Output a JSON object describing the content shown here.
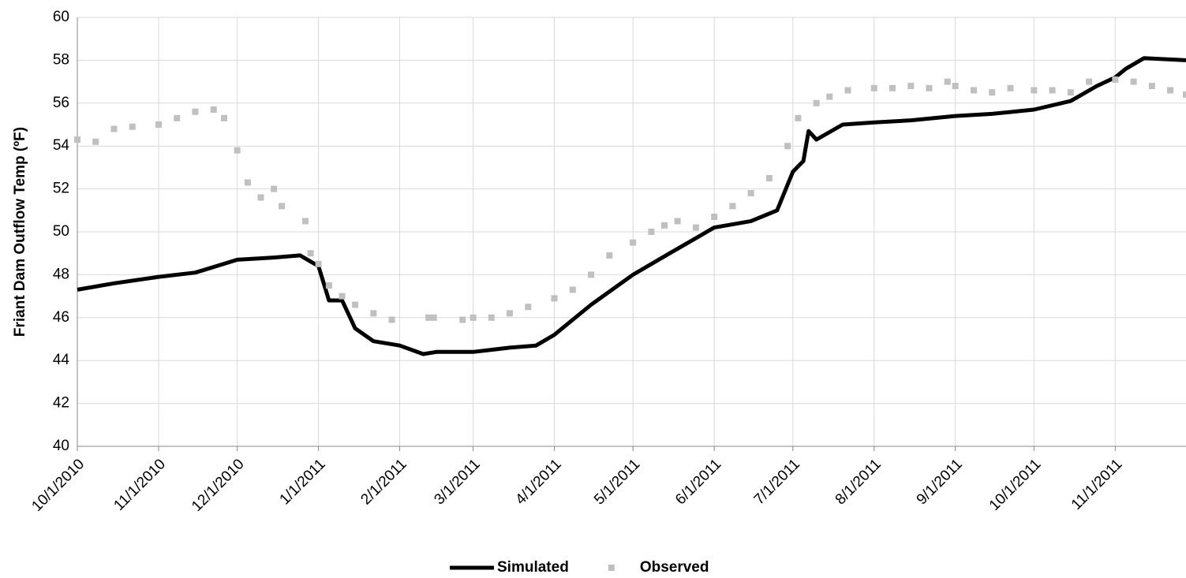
{
  "chart_data": {
    "type": "line",
    "y_label": "Friant Dam Outflow Temp (ºF)",
    "xlim": [
      "2010-10-01",
      "2011-11-28"
    ],
    "xticks": [
      {
        "value": "2010-10-01",
        "label": "10/1/2010"
      },
      {
        "value": "2010-11-01",
        "label": "11/1/2010"
      },
      {
        "value": "2010-12-01",
        "label": "12/1/2010"
      },
      {
        "value": "2011-01-01",
        "label": "1/1/2011"
      },
      {
        "value": "2011-02-01",
        "label": "2/1/2011"
      },
      {
        "value": "2011-03-01",
        "label": "3/1/2011"
      },
      {
        "value": "2011-04-01",
        "label": "4/1/2011"
      },
      {
        "value": "2011-05-01",
        "label": "5/1/2011"
      },
      {
        "value": "2011-06-01",
        "label": "6/1/2011"
      },
      {
        "value": "2011-07-01",
        "label": "7/1/2011"
      },
      {
        "value": "2011-08-01",
        "label": "8/1/2011"
      },
      {
        "value": "2011-09-01",
        "label": "9/1/2011"
      },
      {
        "value": "2011-10-01",
        "label": "10/1/2011"
      },
      {
        "value": "2011-11-01",
        "label": "11/1/2011"
      }
    ],
    "ylim": [
      40,
      60
    ],
    "yticks": [
      40,
      42,
      44,
      46,
      48,
      50,
      52,
      54,
      56,
      58,
      60
    ],
    "grid": true,
    "legend": "bottom",
    "series": [
      {
        "name": "Simulated",
        "color": "#000000",
        "mode": "line",
        "x": [
          "2010-10-01",
          "2010-10-15",
          "2010-11-01",
          "2010-11-15",
          "2010-12-01",
          "2010-12-15",
          "2010-12-25",
          "2011-01-01",
          "2011-01-05",
          "2011-01-10",
          "2011-01-15",
          "2011-01-22",
          "2011-02-01",
          "2011-02-10",
          "2011-02-15",
          "2011-03-01",
          "2011-03-15",
          "2011-03-25",
          "2011-04-01",
          "2011-04-15",
          "2011-05-01",
          "2011-05-15",
          "2011-06-01",
          "2011-06-15",
          "2011-06-25",
          "2011-07-01",
          "2011-07-05",
          "2011-07-07",
          "2011-07-10",
          "2011-07-20",
          "2011-08-01",
          "2011-08-15",
          "2011-09-01",
          "2011-09-15",
          "2011-10-01",
          "2011-10-15",
          "2011-10-25",
          "2011-11-01",
          "2011-11-05",
          "2011-11-12",
          "2011-11-28"
        ],
        "values": [
          47.3,
          47.6,
          47.9,
          48.1,
          48.7,
          48.8,
          48.9,
          48.4,
          46.8,
          46.8,
          45.5,
          44.9,
          44.7,
          44.3,
          44.4,
          44.4,
          44.6,
          44.7,
          45.2,
          46.6,
          48.0,
          49.0,
          50.2,
          50.5,
          51.0,
          52.8,
          53.3,
          54.7,
          54.3,
          55.0,
          55.1,
          55.2,
          55.4,
          55.5,
          55.7,
          56.1,
          56.8,
          57.2,
          57.6,
          58.1,
          58.0
        ]
      },
      {
        "name": "Observed",
        "color": "#c0c0c0",
        "mode": "markers",
        "x": [
          "2010-10-01",
          "2010-10-08",
          "2010-10-15",
          "2010-10-22",
          "2010-11-01",
          "2010-11-08",
          "2010-11-15",
          "2010-11-22",
          "2010-11-26",
          "2010-12-01",
          "2010-12-05",
          "2010-12-10",
          "2010-12-15",
          "2010-12-18",
          "2010-12-27",
          "2010-12-29",
          "2011-01-01",
          "2011-01-05",
          "2011-01-10",
          "2011-01-15",
          "2011-01-22",
          "2011-01-29",
          "2011-02-12",
          "2011-02-14",
          "2011-02-25",
          "2011-03-01",
          "2011-03-08",
          "2011-03-15",
          "2011-03-22",
          "2011-04-01",
          "2011-04-08",
          "2011-04-15",
          "2011-04-22",
          "2011-05-01",
          "2011-05-08",
          "2011-05-13",
          "2011-05-18",
          "2011-05-25",
          "2011-06-01",
          "2011-06-08",
          "2011-06-15",
          "2011-06-22",
          "2011-06-29",
          "2011-07-03",
          "2011-07-10",
          "2011-07-15",
          "2011-07-22",
          "2011-08-01",
          "2011-08-08",
          "2011-08-15",
          "2011-08-22",
          "2011-08-29",
          "2011-09-01",
          "2011-09-08",
          "2011-09-15",
          "2011-09-22",
          "2011-10-01",
          "2011-10-08",
          "2011-10-15",
          "2011-10-22",
          "2011-11-01",
          "2011-11-08",
          "2011-11-15",
          "2011-11-22",
          "2011-11-28"
        ],
        "values": [
          54.3,
          54.2,
          54.8,
          54.9,
          55.0,
          55.3,
          55.6,
          55.7,
          55.3,
          53.8,
          52.3,
          51.6,
          52.0,
          51.2,
          50.5,
          49.0,
          48.5,
          47.5,
          47.0,
          46.6,
          46.2,
          45.9,
          46.0,
          46.0,
          45.9,
          46.0,
          46.0,
          46.2,
          46.5,
          46.9,
          47.3,
          48.0,
          48.9,
          49.5,
          50.0,
          50.3,
          50.5,
          50.2,
          50.7,
          51.2,
          51.8,
          52.5,
          54.0,
          55.3,
          56.0,
          56.3,
          56.6,
          56.7,
          56.7,
          56.8,
          56.7,
          57.0,
          56.8,
          56.6,
          56.5,
          56.7,
          56.6,
          56.6,
          56.5,
          57.0,
          57.1,
          57.0,
          56.8,
          56.6,
          56.4
        ]
      }
    ]
  }
}
